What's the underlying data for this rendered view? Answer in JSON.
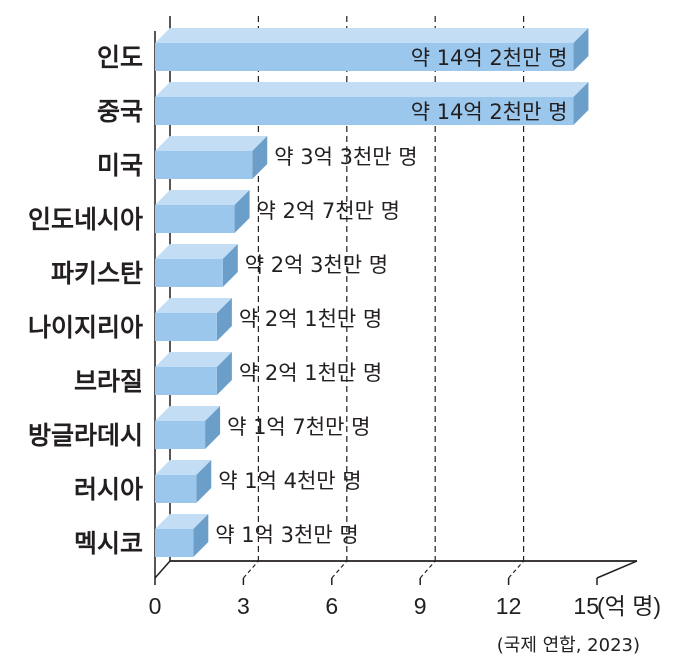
{
  "chart_data": {
    "type": "bar",
    "orientation": "horizontal",
    "categories": [
      "인도",
      "중국",
      "미국",
      "인도네시아",
      "파키스탄",
      "나이지리아",
      "브라질",
      "방글라데시",
      "러시아",
      "멕시코"
    ],
    "values": [
      14.2,
      14.2,
      3.3,
      2.7,
      2.3,
      2.1,
      2.1,
      1.7,
      1.4,
      1.3
    ],
    "data_labels": [
      "약 14억 2천만 명",
      "약 14억 2천만 명",
      "약 3억 3천만 명",
      "약 2억 7천만 명",
      "약 2억 3천만 명",
      "약 2억 1천만 명",
      "약 2억 1천만 명",
      "약 1억 7천만 명",
      "약 1억 4천만 명",
      "약 1억 3천만 명"
    ],
    "x_ticks": [
      "0",
      "3",
      "6",
      "9",
      "12",
      "15"
    ],
    "x_unit": "(억 명)",
    "xlim": [
      0,
      15
    ],
    "source": "(국제 연합, 2023)",
    "bar_color": "#9bc7ec",
    "bar_top_color": "#c2ddf4",
    "bar_side_color": "#6b9ec9",
    "grid": "dashed vertical at 3, 6, 9, 12"
  }
}
